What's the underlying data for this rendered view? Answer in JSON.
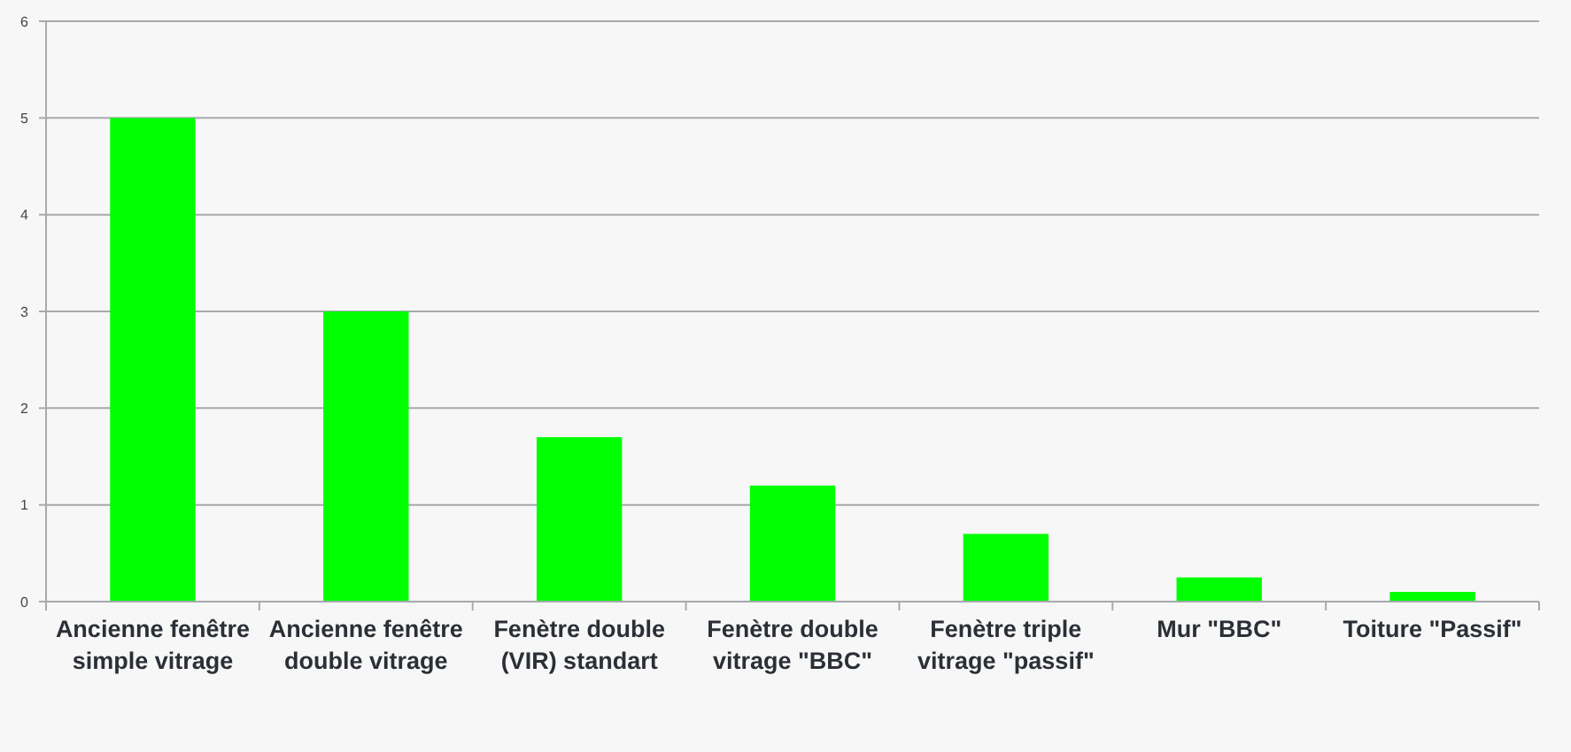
{
  "chart_data": {
    "type": "bar",
    "categories": [
      "Ancienne fenêtre simple vitrage",
      "Ancienne fenêtre double vitrage",
      "Fenètre double (VIR) standart",
      "Fenètre double vitrage \"BBC\"",
      "Fenètre triple vitrage \"passif\"",
      "Mur \"BBC\"",
      "Toiture \"Passif\""
    ],
    "values": [
      5,
      3,
      1.7,
      1.2,
      0.7,
      0.25,
      0.1
    ],
    "color": "#00ff00",
    "ylim": [
      0,
      6
    ],
    "yticks": [
      0,
      1,
      2,
      3,
      4,
      5,
      6
    ],
    "grid": "y"
  }
}
